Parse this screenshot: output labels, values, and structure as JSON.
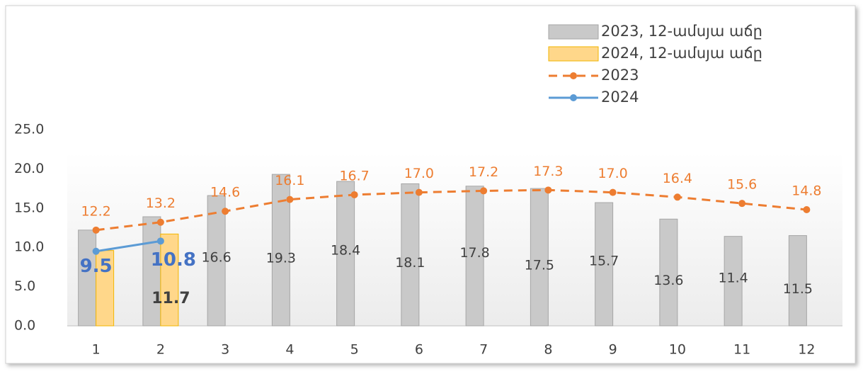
{
  "chart_data": {
    "type": "combo",
    "categories": [
      "1",
      "2",
      "3",
      "4",
      "5",
      "6",
      "7",
      "8",
      "9",
      "10",
      "11",
      "12"
    ],
    "ylim": [
      0,
      25
    ],
    "yticks": [
      {
        "value": 0,
        "label": "0.0"
      },
      {
        "value": 5,
        "label": "5.0"
      },
      {
        "value": 10,
        "label": "10.0"
      },
      {
        "value": 15,
        "label": "15.0"
      },
      {
        "value": 20,
        "label": "20.0"
      },
      {
        "value": 25,
        "label": "25.0"
      }
    ],
    "legend": "top-right",
    "series": [
      {
        "name": "2023, 12-ամսյա աճը",
        "type": "bar",
        "color": "#c9c9c9",
        "values": [
          12.2,
          13.9,
          16.6,
          19.3,
          18.4,
          18.1,
          17.8,
          17.5,
          15.7,
          13.6,
          11.4,
          11.5
        ],
        "value_labels": [
          null,
          null,
          "16.6",
          "19.3",
          "18.4",
          "18.1",
          "17.8",
          "17.5",
          "15.7",
          "13.6",
          "11.4",
          "11.5"
        ]
      },
      {
        "name": "2024, 12-ամսյա աճը",
        "type": "bar",
        "color": "#ffd78a",
        "values": [
          9.6,
          11.7,
          null,
          null,
          null,
          null,
          null,
          null,
          null,
          null,
          null,
          null
        ],
        "value_labels": [
          null,
          "11.7",
          null,
          null,
          null,
          null,
          null,
          null,
          null,
          null,
          null,
          null
        ]
      },
      {
        "name": "2023",
        "type": "line",
        "dashed": true,
        "color": "#ed7d31",
        "values": [
          12.2,
          13.2,
          14.6,
          16.1,
          16.7,
          17.0,
          17.2,
          17.3,
          17.0,
          16.4,
          15.6,
          14.8
        ],
        "value_labels": [
          "12.2",
          "13.2",
          "14.6",
          "16.1",
          "16.7",
          "17.0",
          "17.2",
          "17.3",
          "17.0",
          "16.4",
          "15.6",
          "14.8"
        ]
      },
      {
        "name": "2024",
        "type": "line",
        "dashed": false,
        "color": "#5b9bd5",
        "values": [
          9.5,
          10.8,
          null,
          null,
          null,
          null,
          null,
          null,
          null,
          null,
          null,
          null
        ],
        "value_labels": [
          "9.5",
          "10.8",
          null,
          null,
          null,
          null,
          null,
          null,
          null,
          null,
          null,
          null
        ]
      }
    ]
  }
}
